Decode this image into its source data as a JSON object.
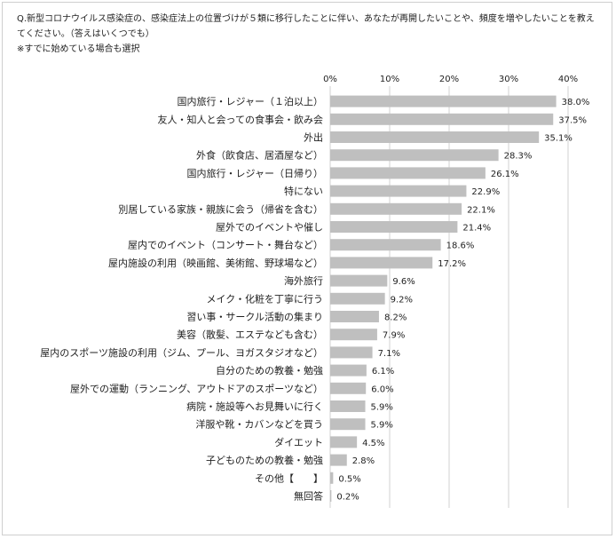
{
  "question": "Q.新型コロナウイルス感染症の、感染症法上の位置づけが５類に移行したことに伴い、あなたが再開したいことや、頻度を増やしたいことを教えてください。（答えはいくつでも）",
  "note": "※すでに始めている場合も選択",
  "colors": {
    "bar": "#bfbfbf",
    "grid": "#d0d0d0",
    "text": "#222222"
  },
  "chart_data": {
    "type": "bar",
    "orientation": "horizontal",
    "categories": [
      "国内旅行・レジャー（１泊以上）",
      "友人・知人と会っての食事会・飲み会",
      "外出",
      "外食（飲食店、居酒屋など）",
      "国内旅行・レジャー（日帰り）",
      "特にない",
      "別居している家族・親族に会う（帰省を含む）",
      "屋外でのイベントや催し",
      "屋内でのイベント（コンサート・舞台など）",
      "屋内施設の利用（映画館、美術館、野球場など）",
      "海外旅行",
      "メイク・化粧を丁寧に行う",
      "習い事・サークル活動の集まり",
      "美容（散髪、エステなども含む）",
      "屋内のスポーツ施設の利用（ジム、プール、ヨガスタジオなど）",
      "自分のための教養・勉強",
      "屋外での運動（ランニング、アウトドアのスポーツなど）",
      "病院・施設等へお見舞いに行く",
      "洋服や靴・カバンなどを買う",
      "ダイエット",
      "子どものための教養・勉強",
      "その他【　　】",
      "無回答"
    ],
    "values": [
      38.0,
      37.5,
      35.1,
      28.3,
      26.1,
      22.9,
      22.1,
      21.4,
      18.6,
      17.2,
      9.6,
      9.2,
      8.2,
      7.9,
      7.1,
      6.1,
      6.0,
      5.9,
      5.9,
      4.5,
      2.8,
      0.5,
      0.2
    ],
    "value_labels": [
      "38.0%",
      "37.5%",
      "35.1%",
      "28.3%",
      "26.1%",
      "22.9%",
      "22.1%",
      "21.4%",
      "18.6%",
      "17.2%",
      "9.6%",
      "9.2%",
      "8.2%",
      "7.9%",
      "7.1%",
      "6.1%",
      "6.0%",
      "5.9%",
      "5.9%",
      "4.5%",
      "2.8%",
      "0.5%",
      "0.2%"
    ],
    "xticks": [
      "0%",
      "10%",
      "20%",
      "30%",
      "40%"
    ],
    "xlim": [
      0,
      40
    ],
    "grid": true,
    "legend": "none"
  }
}
